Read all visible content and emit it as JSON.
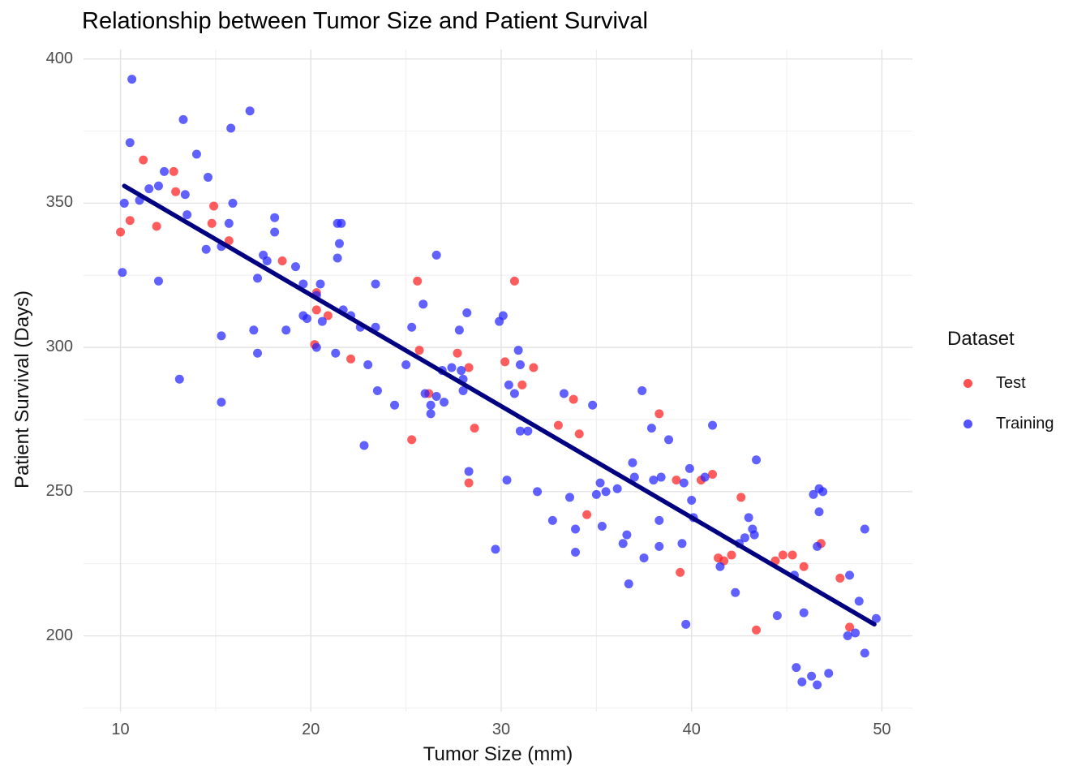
{
  "title": "Relationship between Tumor Size and Patient Survival",
  "x_axis": {
    "label": "Tumor Size (mm)",
    "ticks": [
      10,
      20,
      30,
      40,
      50
    ]
  },
  "y_axis": {
    "label": "Patient Survival (Days)",
    "ticks": [
      200,
      250,
      300,
      350,
      400
    ]
  },
  "legend": {
    "title": "Dataset",
    "items": [
      {
        "label": "Test",
        "color": "#ff1f1f"
      },
      {
        "label": "Training",
        "color": "#2424ff"
      }
    ]
  },
  "colors": {
    "test_point": "#ff1f1f",
    "training_point": "#2424ff",
    "trend_line": "#000080",
    "grid_major": "#e3e3e3",
    "grid_minor": "#eeeeee"
  },
  "chart_data": {
    "type": "scatter",
    "title": "Relationship between Tumor Size and Patient Survival",
    "xlabel": "Tumor Size (mm)",
    "ylabel": "Patient Survival (Days)",
    "xlim": [
      8.06,
      51.6
    ],
    "ylim": [
      173.7,
      403.3
    ],
    "grid": true,
    "legend_position": "right",
    "point_opacity": 0.72,
    "trend_line": {
      "color": "#000080",
      "start": [
        10.2,
        356
      ],
      "end": [
        49.6,
        204
      ]
    },
    "series": [
      {
        "name": "Test",
        "color": "#ff1f1f",
        "points": [
          [
            11.2,
            365
          ],
          [
            12.8,
            361
          ],
          [
            12.9,
            354
          ],
          [
            14.9,
            349
          ],
          [
            10.5,
            344
          ],
          [
            11.9,
            342
          ],
          [
            14.8,
            343
          ],
          [
            10.0,
            340
          ],
          [
            15.7,
            337
          ],
          [
            18.5,
            330
          ],
          [
            20.3,
            319
          ],
          [
            20.3,
            313
          ],
          [
            20.9,
            311
          ],
          [
            20.2,
            301
          ],
          [
            22.1,
            296
          ],
          [
            25.6,
            323
          ],
          [
            30.7,
            323
          ],
          [
            25.7,
            299
          ],
          [
            27.7,
            298
          ],
          [
            30.2,
            295
          ],
          [
            31.7,
            293
          ],
          [
            28.3,
            293
          ],
          [
            26.2,
            284
          ],
          [
            31.1,
            287
          ],
          [
            33.8,
            282
          ],
          [
            28.6,
            272
          ],
          [
            33.0,
            273
          ],
          [
            34.1,
            270
          ],
          [
            25.3,
            268
          ],
          [
            28.3,
            253
          ],
          [
            38.3,
            277
          ],
          [
            39.2,
            254
          ],
          [
            40.5,
            254
          ],
          [
            41.1,
            256
          ],
          [
            34.5,
            242
          ],
          [
            42.6,
            248
          ],
          [
            41.4,
            227
          ],
          [
            41.7,
            226
          ],
          [
            42.1,
            228
          ],
          [
            44.4,
            226
          ],
          [
            44.8,
            228
          ],
          [
            45.3,
            228
          ],
          [
            39.4,
            222
          ],
          [
            45.9,
            224
          ],
          [
            47.8,
            220
          ],
          [
            43.4,
            202
          ],
          [
            48.3,
            203
          ],
          [
            46.8,
            232
          ]
        ]
      },
      {
        "name": "Training",
        "color": "#2424ff",
        "points": [
          [
            10.6,
            393
          ],
          [
            16.8,
            382
          ],
          [
            13.3,
            379
          ],
          [
            15.8,
            376
          ],
          [
            10.5,
            371
          ],
          [
            14.0,
            367
          ],
          [
            12.3,
            361
          ],
          [
            14.6,
            359
          ],
          [
            11.5,
            355
          ],
          [
            12.0,
            356
          ],
          [
            13.4,
            353
          ],
          [
            10.2,
            350
          ],
          [
            11.0,
            351
          ],
          [
            15.9,
            350
          ],
          [
            13.5,
            346
          ],
          [
            15.7,
            343
          ],
          [
            18.1,
            345
          ],
          [
            18.1,
            340
          ],
          [
            15.3,
            335
          ],
          [
            14.5,
            334
          ],
          [
            17.5,
            332
          ],
          [
            17.7,
            330
          ],
          [
            19.2,
            328
          ],
          [
            21.4,
            343
          ],
          [
            21.6,
            343
          ],
          [
            21.5,
            336
          ],
          [
            21.4,
            331
          ],
          [
            26.6,
            332
          ],
          [
            10.1,
            326
          ],
          [
            12.0,
            323
          ],
          [
            17.2,
            324
          ],
          [
            19.6,
            322
          ],
          [
            20.5,
            322
          ],
          [
            20.3,
            318
          ],
          [
            19.6,
            311
          ],
          [
            19.8,
            310
          ],
          [
            21.7,
            313
          ],
          [
            22.1,
            311
          ],
          [
            20.6,
            309
          ],
          [
            22.6,
            307
          ],
          [
            15.3,
            304
          ],
          [
            17.0,
            306
          ],
          [
            18.7,
            306
          ],
          [
            20.3,
            300
          ],
          [
            17.2,
            298
          ],
          [
            21.3,
            298
          ],
          [
            13.1,
            289
          ],
          [
            15.3,
            281
          ],
          [
            22.8,
            266
          ],
          [
            23.4,
            322
          ],
          [
            25.9,
            315
          ],
          [
            28.2,
            312
          ],
          [
            30.1,
            311
          ],
          [
            29.9,
            309
          ],
          [
            23.4,
            307
          ],
          [
            25.3,
            307
          ],
          [
            27.8,
            306
          ],
          [
            30.9,
            299
          ],
          [
            23.0,
            294
          ],
          [
            25.0,
            294
          ],
          [
            31.0,
            294
          ],
          [
            27.4,
            293
          ],
          [
            26.9,
            292
          ],
          [
            27.9,
            292
          ],
          [
            28.0,
            289
          ],
          [
            30.4,
            287
          ],
          [
            23.5,
            285
          ],
          [
            26.0,
            284
          ],
          [
            26.6,
            283
          ],
          [
            27.0,
            281
          ],
          [
            28.0,
            285
          ],
          [
            30.7,
            284
          ],
          [
            33.3,
            284
          ],
          [
            34.8,
            280
          ],
          [
            37.4,
            285
          ],
          [
            24.4,
            280
          ],
          [
            26.3,
            280
          ],
          [
            26.3,
            277
          ],
          [
            31.0,
            271
          ],
          [
            31.4,
            271
          ],
          [
            28.3,
            257
          ],
          [
            30.3,
            254
          ],
          [
            31.9,
            250
          ],
          [
            35.2,
            253
          ],
          [
            35.0,
            249
          ],
          [
            35.5,
            250
          ],
          [
            36.1,
            251
          ],
          [
            36.9,
            260
          ],
          [
            37.0,
            255
          ],
          [
            37.9,
            272
          ],
          [
            38.8,
            268
          ],
          [
            41.1,
            273
          ],
          [
            43.4,
            261
          ],
          [
            39.9,
            258
          ],
          [
            38.4,
            255
          ],
          [
            38.0,
            254
          ],
          [
            39.6,
            253
          ],
          [
            40.7,
            255
          ],
          [
            46.7,
            251
          ],
          [
            46.9,
            250
          ],
          [
            46.4,
            249
          ],
          [
            33.6,
            248
          ],
          [
            32.7,
            240
          ],
          [
            33.9,
            237
          ],
          [
            35.3,
            238
          ],
          [
            36.6,
            235
          ],
          [
            36.4,
            232
          ],
          [
            29.7,
            230
          ],
          [
            33.9,
            229
          ],
          [
            37.5,
            227
          ],
          [
            36.7,
            218
          ],
          [
            38.3,
            240
          ],
          [
            40.0,
            247
          ],
          [
            40.1,
            241
          ],
          [
            43.0,
            241
          ],
          [
            38.3,
            231
          ],
          [
            39.5,
            232
          ],
          [
            42.5,
            232
          ],
          [
            42.8,
            234
          ],
          [
            43.2,
            237
          ],
          [
            43.3,
            235
          ],
          [
            46.7,
            243
          ],
          [
            46.6,
            231
          ],
          [
            49.1,
            237
          ],
          [
            41.5,
            224
          ],
          [
            45.4,
            221
          ],
          [
            48.3,
            221
          ],
          [
            42.3,
            215
          ],
          [
            48.8,
            212
          ],
          [
            44.5,
            207
          ],
          [
            45.9,
            208
          ],
          [
            39.7,
            204
          ],
          [
            49.7,
            206
          ],
          [
            48.6,
            201
          ],
          [
            48.2,
            200
          ],
          [
            49.1,
            194
          ],
          [
            45.5,
            189
          ],
          [
            45.8,
            184
          ],
          [
            46.3,
            186
          ],
          [
            46.6,
            183
          ],
          [
            47.2,
            187
          ]
        ]
      }
    ]
  }
}
